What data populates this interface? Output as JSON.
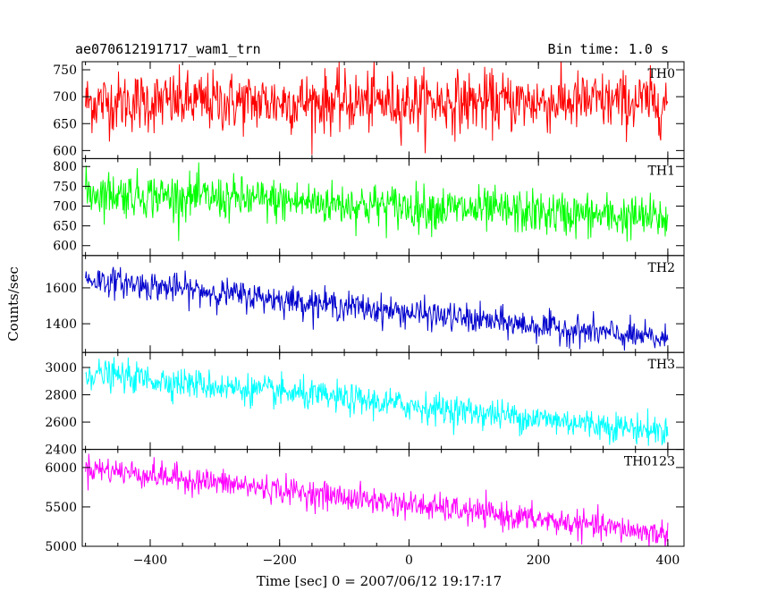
{
  "header": {
    "title": "ae070612191717_wam1_trn",
    "bin_time": "Bin time: 1.0 s"
  },
  "chart_data": {
    "type": "line",
    "title": "ae070612191717_wam1_trn",
    "subtitle": "Bin time: 1.0 s",
    "xlabel": "Time [sec] 0 = 2007/06/12 19:17:17",
    "ylabel": "Counts/sec",
    "xlim": [
      -505,
      425
    ],
    "x_ticks": [
      -400,
      -200,
      0,
      200,
      400
    ],
    "x_tick_labels": [
      "−400",
      "−200",
      "0",
      "200",
      "400"
    ],
    "grid": false,
    "panels": [
      {
        "name": "TH0",
        "color": "#ff0000",
        "ylim": [
          585,
          765
        ],
        "y_ticks": [
          600,
          650,
          700,
          750
        ],
        "series": [
          {
            "name": "TH0",
            "x_start": -500,
            "x_end": 400,
            "trend": [
              [
                -500,
                690
              ],
              [
                400,
                690
              ]
            ],
            "noise": 28
          }
        ]
      },
      {
        "name": "TH1",
        "color": "#00ff00",
        "ylim": [
          575,
          820
        ],
        "y_ticks": [
          600,
          650,
          700,
          750,
          800
        ],
        "series": [
          {
            "name": "TH1",
            "x_start": -500,
            "x_end": 400,
            "trend": [
              [
                -500,
                735
              ],
              [
                400,
                668
              ]
            ],
            "noise": 28
          }
        ]
      },
      {
        "name": "TH2",
        "color": "#0000cd",
        "ylim": [
          1240,
          1780
        ],
        "y_ticks": [
          1400,
          1600
        ],
        "series": [
          {
            "name": "TH2",
            "x_start": -500,
            "x_end": 400,
            "trend": [
              [
                -500,
                1650
              ],
              [
                400,
                1310
              ]
            ],
            "noise": 40
          }
        ]
      },
      {
        "name": "TH3",
        "color": "#00ffff",
        "ylim": [
          2400,
          3110
        ],
        "y_ticks": [
          2400,
          2600,
          2800,
          3000
        ],
        "series": [
          {
            "name": "TH3",
            "x_start": -500,
            "x_end": 400,
            "trend": [
              [
                -500,
                2960
              ],
              [
                400,
                2530
              ]
            ],
            "noise": 55
          }
        ]
      },
      {
        "name": "TH0123",
        "color": "#ff00ff",
        "ylim": [
          5000,
          6230
        ],
        "y_ticks": [
          5000,
          5500,
          6000
        ],
        "series": [
          {
            "name": "TH0123",
            "x_start": -500,
            "x_end": 400,
            "trend": [
              [
                -500,
                6000
              ],
              [
                400,
                5150
              ]
            ],
            "noise": 85
          }
        ]
      }
    ]
  }
}
